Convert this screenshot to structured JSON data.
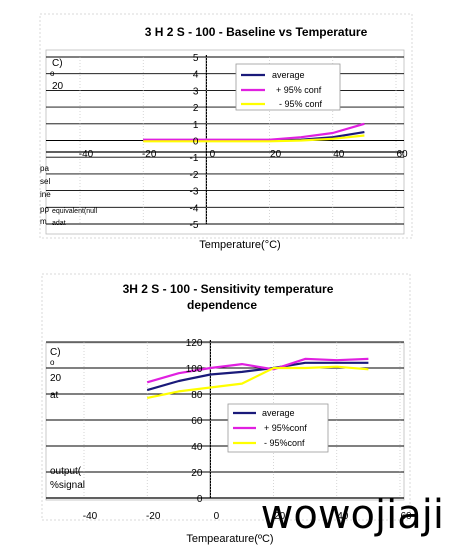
{
  "chart_data": [
    {
      "type": "line",
      "title": "3 H 2 S - 100 - Baseline  vs  Temperature",
      "xlabel": "Temperature(°C)",
      "ylabel_fragments": [
        "C)",
        "o",
        "20",
        "pa",
        "sel",
        "ine",
        "pp",
        "m",
        "equivalent(null",
        "adat"
      ],
      "xlim": [
        -40,
        60
      ],
      "ylim": [
        -5,
        5
      ],
      "x_ticks": [
        "-40",
        "-20",
        "0",
        "20",
        "40",
        "60"
      ],
      "y_ticks": [
        "5",
        "4",
        "3",
        "2",
        "1",
        "0",
        "-1",
        "-2",
        "-3",
        "-4",
        "-5"
      ],
      "legend_position": "top-right",
      "series": [
        {
          "name": "average",
          "color": "#1a1a7a",
          "x": [
            -20,
            -10,
            0,
            10,
            20,
            30,
            40,
            50
          ],
          "y": [
            0.0,
            0.0,
            0.0,
            0.0,
            0.0,
            0.05,
            0.2,
            0.5
          ]
        },
        {
          "name": "+  95% conf",
          "color": "#e020e0",
          "x": [
            -20,
            -10,
            0,
            10,
            20,
            30,
            40,
            50
          ],
          "y": [
            0.05,
            0.05,
            0.05,
            0.05,
            0.05,
            0.2,
            0.45,
            1.0
          ]
        },
        {
          "name": "-  95% conf",
          "color": "#ffff00",
          "x": [
            -20,
            -10,
            0,
            10,
            20,
            30,
            40,
            50
          ],
          "y": [
            -0.05,
            -0.05,
            -0.05,
            -0.05,
            -0.05,
            0.0,
            0.1,
            0.3
          ]
        }
      ]
    },
    {
      "type": "line",
      "title_line1": "3H 2 S - 100 - Sensitivity  temperature",
      "title_line2": "dependence",
      "xlabel": "Tempearature(ºC)",
      "ylabel_fragments": [
        "C)",
        "o",
        "20",
        "at",
        "output(",
        "%signal"
      ],
      "xlim": [
        -40,
        60
      ],
      "ylim": [
        0,
        120
      ],
      "x_ticks": [
        "-40",
        "-20",
        "0",
        "20",
        "40",
        "60"
      ],
      "y_ticks": [
        "120",
        "100",
        "80",
        "60",
        "40",
        "20",
        "0"
      ],
      "legend_position": "bottom-center",
      "series": [
        {
          "name": "average",
          "color": "#1a1a7a",
          "x": [
            -20,
            -10,
            0,
            10,
            20,
            30,
            40,
            50
          ],
          "y": [
            83,
            90,
            95,
            97,
            100,
            104,
            104,
            104
          ]
        },
        {
          "name": "+   95%conf",
          "color": "#e020e0",
          "x": [
            -20,
            -10,
            0,
            10,
            20,
            30,
            40,
            50
          ],
          "y": [
            89,
            96,
            100,
            103,
            99,
            107,
            106,
            107
          ]
        },
        {
          "name": "-   95%conf",
          "color": "#ffff00",
          "x": [
            -20,
            -10,
            0,
            10,
            20,
            30,
            40,
            50
          ],
          "y": [
            77,
            82,
            85,
            88,
            100,
            100,
            101,
            99
          ]
        }
      ]
    }
  ],
  "watermark": "wowojiaji"
}
